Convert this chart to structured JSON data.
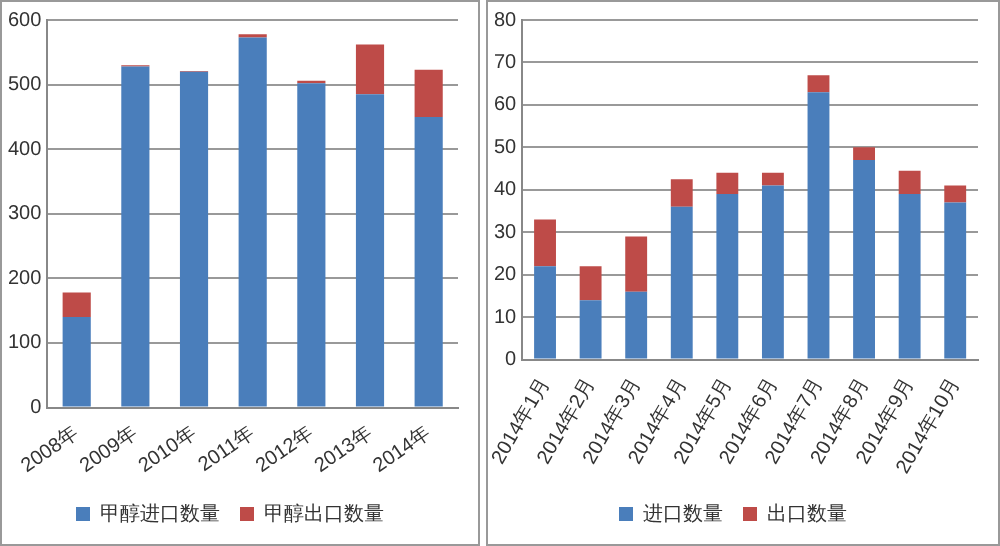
{
  "chart_data": [
    {
      "type": "bar",
      "stacked": true,
      "categories": [
        "2008年",
        "2009年",
        "2010年",
        "2011年",
        "2012年",
        "2013年",
        "2014年"
      ],
      "series": [
        {
          "name": "甲醇进口数量",
          "color": "#4a7ebb",
          "values": [
            140,
            528,
            520,
            573,
            502,
            485,
            450
          ]
        },
        {
          "name": "甲醇出口数量",
          "color": "#be4b48",
          "values": [
            38,
            2,
            1,
            5,
            4,
            77,
            73
          ]
        }
      ],
      "ylim": [
        0,
        600
      ],
      "yticks": [
        0,
        100,
        200,
        300,
        400,
        500,
        600
      ],
      "grid": "y",
      "legend": "bottom"
    },
    {
      "type": "bar",
      "stacked": true,
      "categories": [
        "2014年1月",
        "2014年2月",
        "2014年3月",
        "2014年4月",
        "2014年5月",
        "2014年6月",
        "2014年7月",
        "2014年8月",
        "2014年9月",
        "2014年10月"
      ],
      "series": [
        {
          "name": "进口数量",
          "color": "#4a7ebb",
          "values": [
            22,
            14,
            16,
            36,
            39,
            41,
            63,
            47,
            39,
            37
          ]
        },
        {
          "name": "出口数量",
          "color": "#be4b48",
          "values": [
            11,
            8,
            13,
            6.5,
            5,
            3,
            4,
            3,
            5.5,
            4
          ]
        }
      ],
      "ylim": [
        0,
        80
      ],
      "yticks": [
        0,
        10,
        20,
        30,
        40,
        50,
        60,
        70,
        80
      ],
      "grid": "y",
      "legend": "bottom"
    }
  ]
}
